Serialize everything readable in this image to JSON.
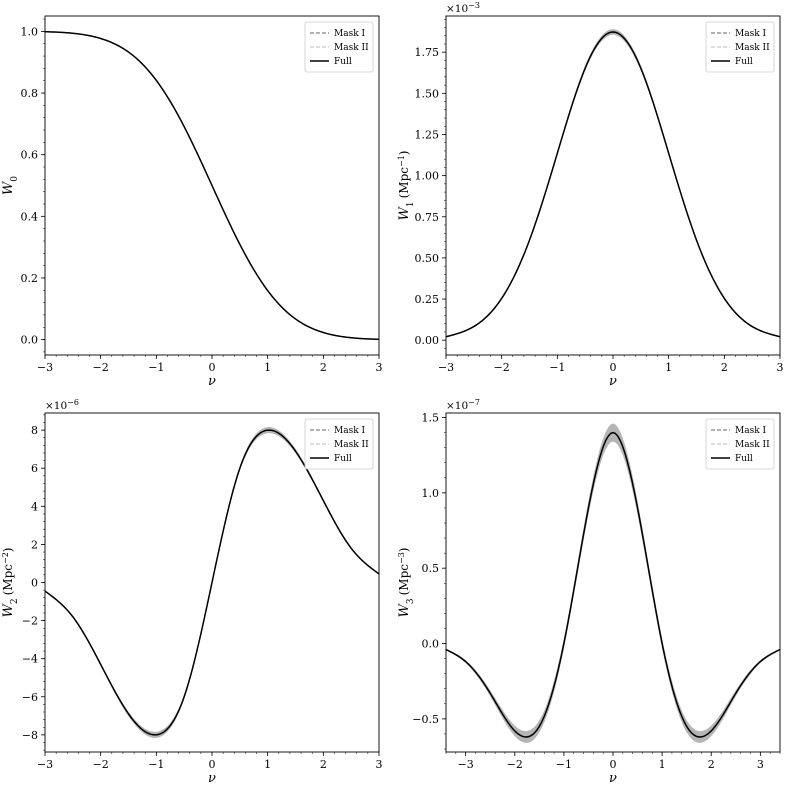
{
  "figure": {
    "colors": {
      "full": "#000000",
      "mask_i": "#666666",
      "mask_ii": "#bbbbbb",
      "band": "#b5b5b5",
      "frame": "#000000"
    }
  },
  "chart_data": [
    {
      "type": "line",
      "grid": false,
      "xlabel": "ν",
      "ylabel": "W",
      "ylabel_sub": "0",
      "ylabel_unit": "",
      "ylabel_unit_exp": "",
      "multiplier_base": "",
      "multiplier_exp": "",
      "xlim": [
        -3,
        3
      ],
      "ylim": [
        -0.05,
        1.05
      ],
      "xticks": [
        -3,
        -2,
        -1,
        0,
        1,
        2,
        3
      ],
      "xtick_labels": [
        "−3",
        "−2",
        "−1",
        "0",
        "1",
        "2",
        "3"
      ],
      "yticks": [
        0.0,
        0.2,
        0.4,
        0.6,
        0.8,
        1.0
      ],
      "ytick_labels": [
        "0.0",
        "0.2",
        "0.4",
        "0.6",
        "0.8",
        "1.0"
      ],
      "legend": {
        "position": "top-right",
        "entries": [
          {
            "label": "Mask I",
            "style": "dashed",
            "color": "#666666"
          },
          {
            "label": "Mask II",
            "style": "dashed",
            "color": "#bbbbbb"
          },
          {
            "label": "Full",
            "style": "solid",
            "color": "#000000"
          }
        ]
      },
      "x": [
        -3,
        -2.5,
        -2,
        -1.5,
        -1,
        -0.5,
        0,
        0.5,
        1,
        1.5,
        2,
        2.5,
        3
      ],
      "series": [
        {
          "key": "mask_i",
          "style": "dashed",
          "color": "#666666",
          "values": [
            0.999,
            0.994,
            0.977,
            0.933,
            0.841,
            0.691,
            0.5,
            0.309,
            0.159,
            0.067,
            0.023,
            0.006,
            0.001
          ]
        },
        {
          "key": "mask_ii",
          "style": "dashed",
          "color": "#bbbbbb",
          "values": [
            0.999,
            0.994,
            0.977,
            0.933,
            0.841,
            0.691,
            0.5,
            0.309,
            0.159,
            0.067,
            0.023,
            0.006,
            0.001
          ]
        },
        {
          "key": "full",
          "style": "solid",
          "color": "#000000",
          "values": [
            0.999,
            0.994,
            0.977,
            0.933,
            0.841,
            0.691,
            0.5,
            0.309,
            0.159,
            0.067,
            0.023,
            0.006,
            0.001
          ]
        }
      ],
      "band": null
    },
    {
      "type": "line",
      "grid": false,
      "xlabel": "ν",
      "ylabel": "W",
      "ylabel_sub": "1",
      "ylabel_unit": "(Mpc",
      "ylabel_unit_exp": "−1",
      "multiplier_base": "×10",
      "multiplier_exp": "−3",
      "xlim": [
        -3,
        3
      ],
      "ylim": [
        -0.09,
        1.97
      ],
      "xticks": [
        -3,
        -2,
        -1,
        0,
        1,
        2,
        3
      ],
      "xtick_labels": [
        "−3",
        "−2",
        "−1",
        "0",
        "1",
        "2",
        "3"
      ],
      "yticks": [
        0.0,
        0.25,
        0.5,
        0.75,
        1.0,
        1.25,
        1.5,
        1.75
      ],
      "ytick_labels": [
        "0.00",
        "0.25",
        "0.50",
        "0.75",
        "1.00",
        "1.25",
        "1.50",
        "1.75"
      ],
      "legend": {
        "position": "top-right",
        "entries": [
          {
            "label": "Mask I",
            "style": "dashed",
            "color": "#666666"
          },
          {
            "label": "Mask II",
            "style": "dashed",
            "color": "#bbbbbb"
          },
          {
            "label": "Full",
            "style": "solid",
            "color": "#000000"
          }
        ]
      },
      "x": [
        -3,
        -2.5,
        -2,
        -1.5,
        -1,
        -0.5,
        0,
        0.5,
        1,
        1.5,
        2,
        2.5,
        3
      ],
      "series": [
        {
          "key": "mask_i",
          "style": "dashed",
          "color": "#666666",
          "values": [
            0.021,
            0.083,
            0.254,
            0.608,
            1.136,
            1.653,
            1.873,
            1.653,
            1.136,
            0.608,
            0.254,
            0.083,
            0.021
          ]
        },
        {
          "key": "mask_ii",
          "style": "dashed",
          "color": "#bbbbbb",
          "values": [
            0.021,
            0.083,
            0.254,
            0.608,
            1.136,
            1.653,
            1.873,
            1.653,
            1.136,
            0.608,
            0.254,
            0.083,
            0.021
          ]
        },
        {
          "key": "full",
          "style": "solid",
          "color": "#000000",
          "values": [
            0.021,
            0.083,
            0.254,
            0.608,
            1.136,
            1.653,
            1.873,
            1.653,
            1.136,
            0.608,
            0.254,
            0.083,
            0.021
          ]
        }
      ],
      "band": {
        "color": "#b5b5b5",
        "halfwidth": [
          0.002,
          0.004,
          0.007,
          0.01,
          0.013,
          0.016,
          0.017,
          0.016,
          0.013,
          0.01,
          0.007,
          0.004,
          0.002
        ]
      }
    },
    {
      "type": "line",
      "grid": false,
      "xlabel": "ν",
      "ylabel": "W",
      "ylabel_sub": "2",
      "ylabel_unit": "(Mpc",
      "ylabel_unit_exp": "−2",
      "multiplier_base": "×10",
      "multiplier_exp": "−6",
      "xlim": [
        -3,
        3
      ],
      "ylim": [
        -8.9,
        8.9
      ],
      "xticks": [
        -3,
        -2,
        -1,
        0,
        1,
        2,
        3
      ],
      "xtick_labels": [
        "−3",
        "−2",
        "−1",
        "0",
        "1",
        "2",
        "3"
      ],
      "yticks": [
        -8,
        -6,
        -4,
        -2,
        0,
        2,
        4,
        6,
        8
      ],
      "ytick_labels": [
        "−8",
        "−6",
        "−4",
        "−2",
        "0",
        "2",
        "4",
        "6",
        "8"
      ],
      "legend": {
        "position": "top-right",
        "entries": [
          {
            "label": "Mask I",
            "style": "dashed",
            "color": "#666666"
          },
          {
            "label": "Mask II",
            "style": "dashed",
            "color": "#bbbbbb"
          },
          {
            "label": "Full",
            "style": "solid",
            "color": "#000000"
          }
        ]
      },
      "x": [
        -3,
        -2.5,
        -2,
        -1.5,
        -1,
        -0.5,
        0,
        0.5,
        1,
        1.5,
        2,
        2.5,
        3
      ],
      "series": [
        {
          "key": "mask_i",
          "style": "dashed",
          "color": "#666666",
          "values": [
            -0.45,
            -1.8,
            -4.3,
            -6.9,
            -8.0,
            -6.0,
            0.0,
            6.0,
            8.0,
            6.9,
            4.3,
            1.8,
            0.45
          ]
        },
        {
          "key": "mask_ii",
          "style": "dashed",
          "color": "#bbbbbb",
          "values": [
            -0.45,
            -1.8,
            -4.3,
            -6.9,
            -8.0,
            -6.0,
            0.0,
            6.0,
            8.0,
            6.9,
            4.3,
            1.8,
            0.45
          ]
        },
        {
          "key": "full",
          "style": "solid",
          "color": "#000000",
          "values": [
            -0.45,
            -1.8,
            -4.3,
            -6.9,
            -8.0,
            -6.0,
            0.0,
            6.0,
            8.0,
            6.9,
            4.3,
            1.8,
            0.45
          ]
        }
      ],
      "band": {
        "color": "#b5b5b5",
        "halfwidth": [
          0.03,
          0.05,
          0.08,
          0.12,
          0.16,
          0.12,
          0.08,
          0.12,
          0.16,
          0.12,
          0.08,
          0.05,
          0.03
        ]
      }
    },
    {
      "type": "line",
      "grid": false,
      "xlabel": "ν",
      "ylabel": "W",
      "ylabel_sub": "3",
      "ylabel_unit": "(Mpc",
      "ylabel_unit_exp": "−3",
      "multiplier_base": "×10",
      "multiplier_exp": "−7",
      "xlim": [
        -3.4,
        3.4
      ],
      "ylim": [
        -0.72,
        1.53
      ],
      "xticks": [
        -3,
        -2,
        -1,
        0,
        1,
        2,
        3
      ],
      "xtick_labels": [
        "−3",
        "−2",
        "−1",
        "0",
        "1",
        "2",
        "3"
      ],
      "yticks": [
        -0.5,
        0.0,
        0.5,
        1.0,
        1.5
      ],
      "ytick_labels": [
        "−0.5",
        "0.0",
        "0.5",
        "1.0",
        "1.5"
      ],
      "legend": {
        "position": "top-right",
        "entries": [
          {
            "label": "Mask I",
            "style": "dashed",
            "color": "#666666"
          },
          {
            "label": "Mask II",
            "style": "dashed",
            "color": "#bbbbbb"
          },
          {
            "label": "Full",
            "style": "solid",
            "color": "#000000"
          }
        ]
      },
      "x": [
        -3.4,
        -3,
        -2.5,
        -2,
        -1.5,
        -1,
        -0.5,
        0,
        0.5,
        1,
        1.5,
        2,
        2.5,
        3,
        3.4
      ],
      "series": [
        {
          "key": "mask_i",
          "style": "dashed",
          "color": "#666666",
          "values": [
            -0.04,
            -0.12,
            -0.33,
            -0.58,
            -0.55,
            0.0,
            0.9,
            1.4,
            0.9,
            0.0,
            -0.55,
            -0.58,
            -0.33,
            -0.12,
            -0.04
          ]
        },
        {
          "key": "mask_ii",
          "style": "dashed",
          "color": "#bbbbbb",
          "values": [
            -0.04,
            -0.12,
            -0.33,
            -0.58,
            -0.55,
            0.0,
            0.9,
            1.4,
            0.9,
            0.0,
            -0.55,
            -0.58,
            -0.33,
            -0.12,
            -0.04
          ]
        },
        {
          "key": "full",
          "style": "solid",
          "color": "#000000",
          "values": [
            -0.04,
            -0.12,
            -0.33,
            -0.58,
            -0.55,
            0.0,
            0.9,
            1.4,
            0.9,
            0.0,
            -0.55,
            -0.58,
            -0.33,
            -0.12,
            -0.04
          ]
        }
      ],
      "band": {
        "color": "#b5b5b5",
        "halfwidth": [
          0.005,
          0.01,
          0.02,
          0.035,
          0.04,
          0.035,
          0.045,
          0.06,
          0.045,
          0.035,
          0.04,
          0.035,
          0.02,
          0.01,
          0.005
        ]
      }
    }
  ]
}
